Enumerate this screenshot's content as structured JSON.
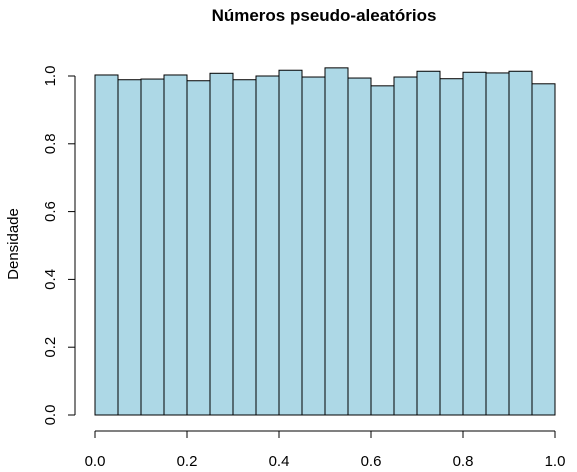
{
  "chart_data": {
    "type": "bar",
    "title": "Números pseudo-aleatórios",
    "xlabel": "",
    "ylabel": "Densidade",
    "bin_edges": [
      0.0,
      0.05,
      0.1,
      0.15,
      0.2,
      0.25,
      0.3,
      0.35,
      0.4,
      0.45,
      0.5,
      0.55,
      0.6,
      0.65,
      0.7,
      0.75,
      0.8,
      0.85,
      0.9,
      0.95,
      1.0
    ],
    "values": [
      1.003,
      0.989,
      0.991,
      1.003,
      0.986,
      1.008,
      0.989,
      1.0,
      1.017,
      0.997,
      1.024,
      0.994,
      0.971,
      0.997,
      1.014,
      0.992,
      1.011,
      1.009,
      1.014,
      0.977
    ],
    "xlim": [
      0.0,
      1.0
    ],
    "ylim": [
      0.0,
      1.0
    ],
    "xticks": [
      "0.0",
      "0.2",
      "0.4",
      "0.6",
      "0.8",
      "1.0"
    ],
    "yticks": [
      "0.0",
      "0.2",
      "0.4",
      "0.6",
      "0.8",
      "1.0"
    ],
    "bar_color": "#add8e6",
    "edge_color": "#000000",
    "grid": false
  }
}
